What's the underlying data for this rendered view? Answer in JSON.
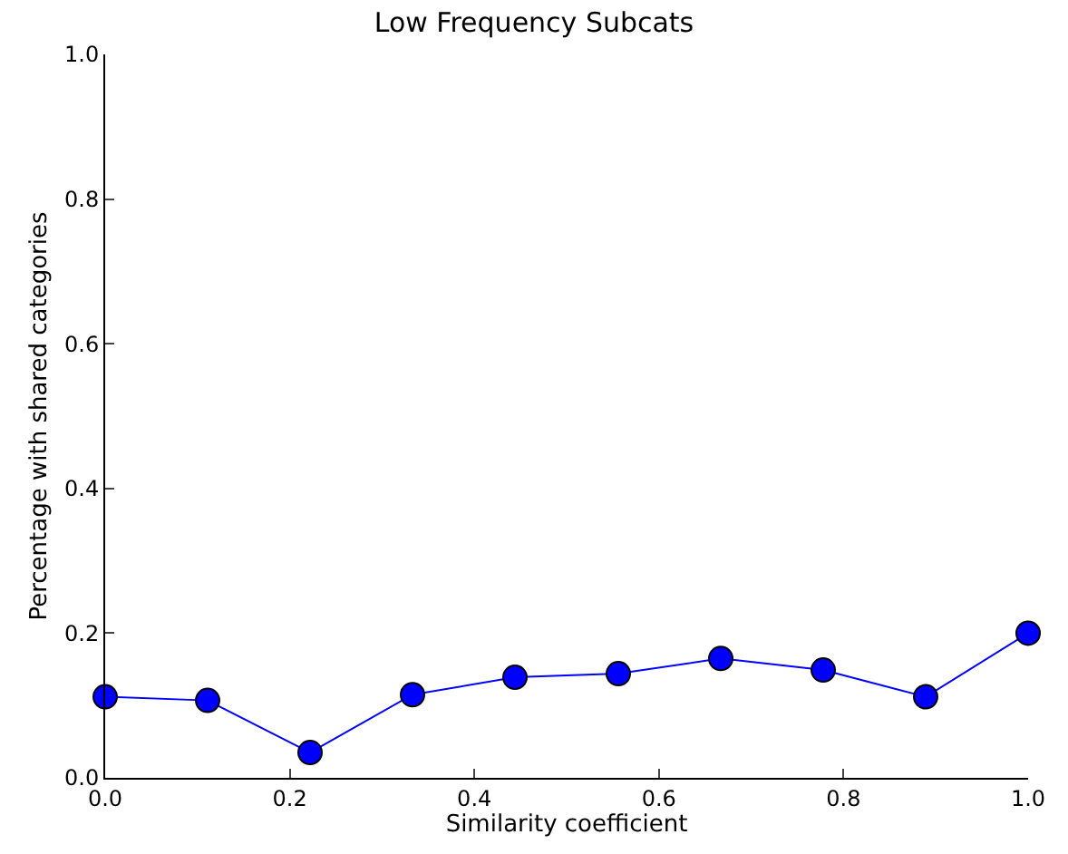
{
  "chart_data": {
    "type": "line",
    "title": "Low Frequency Subcats",
    "xlabel": "Similarity coefficient",
    "ylabel": "Percentage with shared categories",
    "x": [
      0,
      0.111,
      0.222,
      0.333,
      0.444,
      0.556,
      0.667,
      0.778,
      0.889,
      1.0
    ],
    "series": [
      {
        "color": "#0000ff",
        "values": [
          0.112,
          0.107,
          0.035,
          0.115,
          0.139,
          0.144,
          0.165,
          0.149,
          0.112,
          0.2
        ]
      }
    ],
    "xlim": [
      0,
      1
    ],
    "ylim": [
      0,
      1
    ],
    "xticks": [
      {
        "value": 0,
        "label": "0.0"
      },
      0.2,
      0.4,
      0.6,
      0.8,
      {
        "value": 1,
        "label": "1.0"
      }
    ],
    "yticks": [
      {
        "value": 0,
        "label": "0.0"
      },
      0.2,
      0.4,
      0.6,
      0.8,
      {
        "value": 1,
        "label": "1.0"
      }
    ],
    "marker": "circle",
    "line_style": "solid",
    "legend": false
  }
}
